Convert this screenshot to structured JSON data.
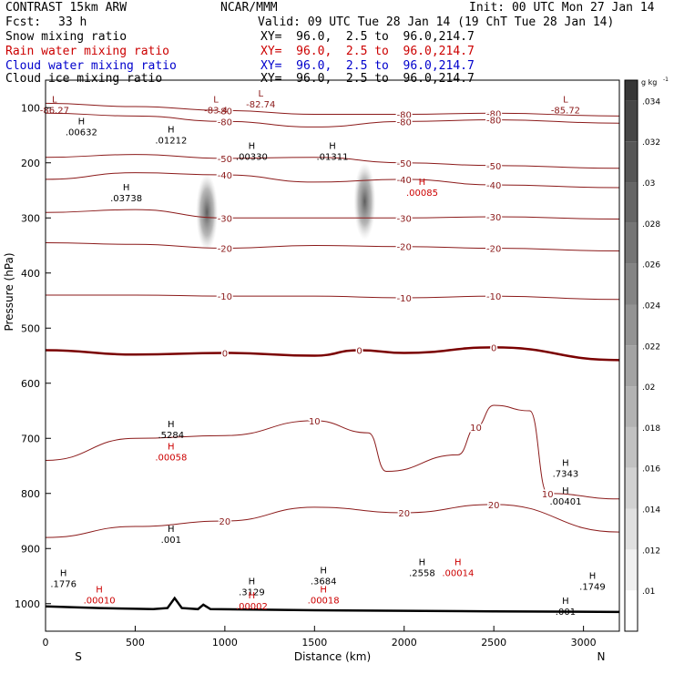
{
  "header": {
    "model": "CONTRAST 15km ARW",
    "org": "NCAR/MMM",
    "init": "Init: 00 UTC Mon 27 Jan 14",
    "fcst_label": "Fcst:",
    "fcst_value": "33 h",
    "valid": "Valid: 09 UTC Tue 28 Jan 14 (19 ChT Tue 28 Jan 14)",
    "fields": [
      {
        "name": "Snow mixing ratio",
        "xy": "XY=  96.0,  2.5 to  96.0,214.7",
        "color": "#000000"
      },
      {
        "name": "Rain water mixing ratio",
        "xy": "XY=  96.0,  2.5 to  96.0,214.7",
        "color": "#cc0000"
      },
      {
        "name": "Cloud water mixing ratio",
        "xy": "XY=  96.0,  2.5 to  96.0,214.7",
        "color": "#0000cc"
      },
      {
        "name": "Cloud ice mixing ratio",
        "xy": "XY=  96.0,  2.5 to  96.0,214.7",
        "color": "#000000"
      }
    ]
  },
  "chart_data": {
    "type": "contour",
    "xlabel": "Distance (km)",
    "ylabel": "Pressure (hPa)",
    "xlim": [
      0,
      3200
    ],
    "ylim": [
      1050,
      50
    ],
    "xticks": [
      0,
      500,
      1000,
      1500,
      2000,
      2500,
      3000
    ],
    "yticks": [
      100,
      200,
      300,
      400,
      500,
      600,
      700,
      800,
      900,
      1000
    ],
    "end_labels": {
      "left": "S",
      "right": "N"
    },
    "colorbar": {
      "unit": "g kg",
      "unit_exp": "-1",
      "ticks": [
        ".01",
        ".012",
        ".014",
        ".016",
        ".018",
        ".02",
        ".022",
        ".024",
        ".026",
        ".028",
        ".03",
        ".032",
        ".034"
      ]
    },
    "temperature_contours": [
      {
        "label": "-80",
        "p": [
          [
            0,
            92
          ],
          [
            500,
            98
          ],
          [
            1000,
            105
          ],
          [
            1500,
            112
          ],
          [
            2000,
            112
          ],
          [
            2500,
            110
          ],
          [
            3200,
            115
          ]
        ]
      },
      {
        "label": "-80",
        "p": [
          [
            0,
            110
          ],
          [
            500,
            115
          ],
          [
            1000,
            125
          ],
          [
            1500,
            135
          ],
          [
            2000,
            125
          ],
          [
            2500,
            122
          ],
          [
            3200,
            128
          ]
        ]
      },
      {
        "label": "-50",
        "p": [
          [
            0,
            190
          ],
          [
            500,
            185
          ],
          [
            1000,
            192
          ],
          [
            1500,
            190
          ],
          [
            2000,
            200
          ],
          [
            2500,
            205
          ],
          [
            3200,
            210
          ]
        ]
      },
      {
        "label": "-40",
        "p": [
          [
            0,
            230
          ],
          [
            500,
            218
          ],
          [
            1000,
            222
          ],
          [
            1500,
            235
          ],
          [
            2000,
            230
          ],
          [
            2500,
            240
          ],
          [
            3200,
            245
          ]
        ]
      },
      {
        "label": "-30",
        "p": [
          [
            0,
            290
          ],
          [
            500,
            285
          ],
          [
            1000,
            300
          ],
          [
            1500,
            300
          ],
          [
            2000,
            300
          ],
          [
            2500,
            298
          ],
          [
            3200,
            302
          ]
        ]
      },
      {
        "label": "-20",
        "p": [
          [
            0,
            345
          ],
          [
            500,
            348
          ],
          [
            1000,
            355
          ],
          [
            1500,
            350
          ],
          [
            2000,
            352
          ],
          [
            2500,
            355
          ],
          [
            3200,
            360
          ]
        ]
      },
      {
        "label": "-10",
        "p": [
          [
            0,
            440
          ],
          [
            500,
            440
          ],
          [
            1000,
            442
          ],
          [
            1500,
            442
          ],
          [
            2000,
            445
          ],
          [
            2500,
            442
          ],
          [
            3200,
            448
          ]
        ]
      },
      {
        "label": "0",
        "p": [
          [
            0,
            540
          ],
          [
            500,
            548
          ],
          [
            1000,
            545
          ],
          [
            1500,
            550
          ],
          [
            1750,
            540
          ],
          [
            2000,
            545
          ],
          [
            2500,
            535
          ],
          [
            3200,
            558
          ]
        ]
      },
      {
        "label": "10",
        "p": [
          [
            0,
            740
          ],
          [
            500,
            700
          ],
          [
            1000,
            695
          ],
          [
            1500,
            668
          ],
          [
            1800,
            690
          ],
          [
            1900,
            760
          ],
          [
            2300,
            730
          ],
          [
            2400,
            680
          ],
          [
            2500,
            640
          ],
          [
            2700,
            650
          ],
          [
            2800,
            800
          ],
          [
            3200,
            810
          ]
        ]
      },
      {
        "label": "20",
        "p": [
          [
            0,
            880
          ],
          [
            500,
            860
          ],
          [
            1000,
            850
          ],
          [
            1500,
            825
          ],
          [
            2000,
            835
          ],
          [
            2500,
            820
          ],
          [
            3200,
            870
          ]
        ]
      }
    ],
    "centers": [
      {
        "type": "L",
        "label": "-86.27",
        "x": 50,
        "p": 100
      },
      {
        "type": "H",
        "label": ".00632",
        "x": 200,
        "p": 140
      },
      {
        "type": "H",
        "label": ".01212",
        "x": 700,
        "p": 155
      },
      {
        "type": "L",
        "label": "-83.4",
        "x": 950,
        "p": 100
      },
      {
        "type": "L",
        "label": "-82.74",
        "x": 1200,
        "p": 90
      },
      {
        "type": "H",
        "label": ".00330",
        "x": 1150,
        "p": 185
      },
      {
        "type": "H",
        "label": ".01311",
        "x": 1600,
        "p": 185
      },
      {
        "type": "H",
        "label": ".00085",
        "x": 2100,
        "p": 250
      },
      {
        "type": "L",
        "label": "-85.72",
        "x": 2900,
        "p": 100
      },
      {
        "type": "H",
        "label": ".03738",
        "x": 450,
        "p": 260
      },
      {
        "type": "H",
        "label": ".5284",
        "x": 700,
        "p": 690
      },
      {
        "type": "H",
        "label": ".00058",
        "x": 700,
        "p": 730
      },
      {
        "type": "H",
        "label": ".7343",
        "x": 2900,
        "p": 760
      },
      {
        "type": "H",
        "label": ".00401",
        "x": 2900,
        "p": 810
      },
      {
        "type": "H",
        "label": ".1776",
        "x": 100,
        "p": 960
      },
      {
        "type": "H",
        "label": ".00010",
        "x": 300,
        "p": 990
      },
      {
        "type": "H",
        "label": ".3129",
        "x": 1150,
        "p": 975
      },
      {
        "type": "H",
        "label": ".00002",
        "x": 1150,
        "p": 1000
      },
      {
        "type": "H",
        "label": ".3684",
        "x": 1550,
        "p": 955
      },
      {
        "type": "H",
        "label": ".00018",
        "x": 1550,
        "p": 990
      },
      {
        "type": "H",
        "label": ".2558",
        "x": 2100,
        "p": 940
      },
      {
        "type": "H",
        "label": ".00014",
        "x": 2300,
        "p": 940
      },
      {
        "type": "H",
        "label": ".1749",
        "x": 3050,
        "p": 965
      },
      {
        "type": "H",
        "label": ".001",
        "x": 2900,
        "p": 1010
      },
      {
        "type": "H",
        "label": ".001",
        "x": 700,
        "p": 880
      }
    ],
    "ice_blobs": [
      {
        "x": 900,
        "p_top": 220,
        "p_bot": 360
      },
      {
        "x": 1780,
        "p_top": 200,
        "p_bot": 340
      }
    ],
    "terrain": [
      [
        0,
        1005
      ],
      [
        300,
        1008
      ],
      [
        600,
        1010
      ],
      [
        680,
        1008
      ],
      [
        720,
        990
      ],
      [
        760,
        1008
      ],
      [
        850,
        1010
      ],
      [
        880,
        1002
      ],
      [
        920,
        1010
      ],
      [
        1500,
        1012
      ],
      [
        2500,
        1014
      ],
      [
        3200,
        1015
      ]
    ]
  }
}
